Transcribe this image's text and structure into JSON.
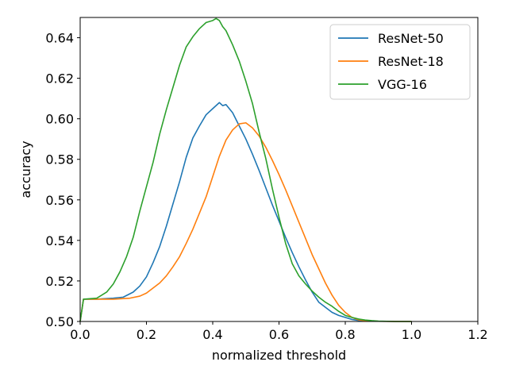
{
  "chart_data": {
    "type": "line",
    "title": "",
    "xlabel": "normalized threshold",
    "ylabel": "accuracy",
    "xlim": [
      0.0,
      1.2
    ],
    "ylim": [
      0.5,
      0.65
    ],
    "xticks": [
      0.0,
      0.2,
      0.4,
      0.6,
      0.8,
      1.0,
      1.2
    ],
    "xtick_labels": [
      "0.0",
      "0.2",
      "0.4",
      "0.6",
      "0.8",
      "1.0",
      "1.2"
    ],
    "yticks": [
      0.5,
      0.52,
      0.54,
      0.56,
      0.58,
      0.6,
      0.62,
      0.64
    ],
    "ytick_labels": [
      "0.50",
      "0.52",
      "0.54",
      "0.56",
      "0.58",
      "0.60",
      "0.62",
      "0.64"
    ],
    "grid": false,
    "legend_position": "top-right",
    "series": [
      {
        "name": "ResNet-50",
        "color": "#1f77b4",
        "x": [
          0.0,
          0.01,
          0.05,
          0.1,
          0.13,
          0.16,
          0.18,
          0.2,
          0.22,
          0.24,
          0.26,
          0.28,
          0.3,
          0.32,
          0.34,
          0.36,
          0.38,
          0.4,
          0.42,
          0.43,
          0.44,
          0.45,
          0.46,
          0.48,
          0.5,
          0.52,
          0.54,
          0.56,
          0.58,
          0.6,
          0.62,
          0.64,
          0.66,
          0.68,
          0.7,
          0.72,
          0.74,
          0.76,
          0.78,
          0.8,
          0.82,
          0.84,
          0.86,
          0.88,
          0.9,
          0.95,
          1.0
        ],
        "y": [
          0.5,
          0.511,
          0.511,
          0.5115,
          0.512,
          0.5145,
          0.5175,
          0.522,
          0.529,
          0.537,
          0.547,
          0.558,
          0.569,
          0.581,
          0.5905,
          0.5965,
          0.602,
          0.605,
          0.608,
          0.6065,
          0.607,
          0.605,
          0.603,
          0.5965,
          0.59,
          0.5825,
          0.5745,
          0.566,
          0.5575,
          0.5495,
          0.5415,
          0.534,
          0.527,
          0.5205,
          0.5145,
          0.5095,
          0.507,
          0.5045,
          0.503,
          0.502,
          0.501,
          0.5005,
          0.5003,
          0.5002,
          0.5001,
          0.5,
          0.5
        ]
      },
      {
        "name": "ResNet-18",
        "color": "#ff7f0e",
        "x": [
          0.0,
          0.01,
          0.05,
          0.1,
          0.15,
          0.18,
          0.2,
          0.22,
          0.24,
          0.26,
          0.28,
          0.3,
          0.32,
          0.34,
          0.36,
          0.38,
          0.4,
          0.42,
          0.44,
          0.46,
          0.48,
          0.5,
          0.52,
          0.54,
          0.56,
          0.58,
          0.6,
          0.62,
          0.64,
          0.66,
          0.68,
          0.7,
          0.72,
          0.74,
          0.76,
          0.78,
          0.8,
          0.82,
          0.84,
          0.86,
          0.88,
          0.9,
          0.95,
          1.0
        ],
        "y": [
          0.5,
          0.511,
          0.511,
          0.511,
          0.5115,
          0.5125,
          0.514,
          0.5165,
          0.519,
          0.5225,
          0.527,
          0.532,
          0.5385,
          0.5455,
          0.5535,
          0.5615,
          0.5715,
          0.5815,
          0.5895,
          0.5945,
          0.5975,
          0.598,
          0.5955,
          0.5915,
          0.586,
          0.5795,
          0.5725,
          0.565,
          0.557,
          0.549,
          0.541,
          0.533,
          0.526,
          0.519,
          0.513,
          0.508,
          0.5045,
          0.502,
          0.5008,
          0.5004,
          0.5002,
          0.5001,
          0.5,
          0.5
        ]
      },
      {
        "name": "VGG-16",
        "color": "#2ca02c",
        "x": [
          0.0,
          0.01,
          0.05,
          0.08,
          0.1,
          0.12,
          0.14,
          0.16,
          0.18,
          0.2,
          0.22,
          0.24,
          0.26,
          0.28,
          0.3,
          0.32,
          0.34,
          0.36,
          0.38,
          0.4,
          0.41,
          0.42,
          0.43,
          0.44,
          0.46,
          0.48,
          0.5,
          0.52,
          0.54,
          0.56,
          0.58,
          0.6,
          0.62,
          0.64,
          0.66,
          0.68,
          0.7,
          0.72,
          0.74,
          0.76,
          0.78,
          0.8,
          0.82,
          0.84,
          0.86,
          0.88,
          0.9,
          0.95,
          1.0
        ],
        "y": [
          0.5,
          0.511,
          0.5115,
          0.5145,
          0.5185,
          0.5245,
          0.532,
          0.5415,
          0.5545,
          0.5665,
          0.5785,
          0.5925,
          0.6045,
          0.6155,
          0.6265,
          0.6355,
          0.6405,
          0.6445,
          0.6475,
          0.6485,
          0.6495,
          0.6485,
          0.6455,
          0.6435,
          0.6365,
          0.6285,
          0.6185,
          0.6075,
          0.5935,
          0.5805,
          0.5655,
          0.5515,
          0.5385,
          0.5285,
          0.5225,
          0.5185,
          0.515,
          0.512,
          0.5095,
          0.5075,
          0.505,
          0.503,
          0.502,
          0.5012,
          0.5007,
          0.5004,
          0.5002,
          0.5,
          0.5
        ]
      }
    ]
  }
}
